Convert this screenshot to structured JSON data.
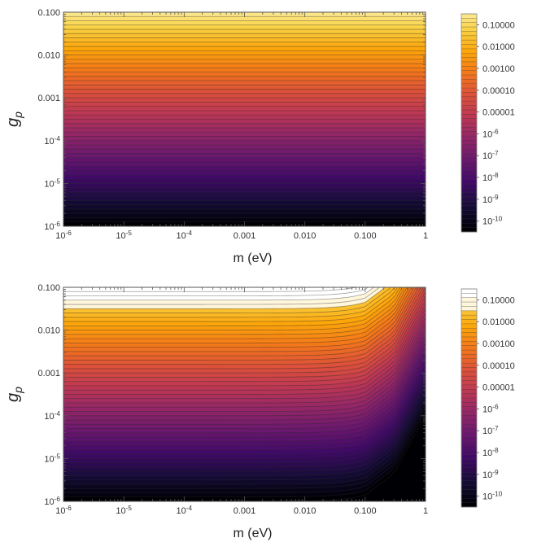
{
  "chart_data": [
    {
      "type": "heatmap",
      "subtype": "contour",
      "title": "",
      "xlabel": "m (eV)",
      "ylabel": "g_p",
      "x_scale": "log",
      "y_scale": "log",
      "xlim": [
        1e-06,
        1
      ],
      "ylim": [
        1e-06,
        0.1
      ],
      "x_ticks": [
        "10^-6",
        "10^-5",
        "10^-4",
        "0.001",
        "0.010",
        "0.100",
        "1"
      ],
      "x_tick_values": [
        1e-06,
        1e-05,
        0.0001,
        0.001,
        0.01,
        0.1,
        1
      ],
      "y_ticks": [
        "10^-6",
        "10^-5",
        "10^-4",
        "0.001",
        "0.010",
        "0.100"
      ],
      "y_tick_values": [
        1e-06,
        1e-05,
        0.0001,
        0.001,
        0.01,
        0.1
      ],
      "colorbar": {
        "labels": [
          "0.10000",
          "0.01000",
          "0.00100",
          "0.00010",
          "0.00001",
          "10^-6",
          "10^-7",
          "10^-8",
          "10^-9",
          "10^-10"
        ],
        "values": [
          0.1,
          0.01,
          0.001,
          0.0001,
          1e-05,
          1e-06,
          1e-07,
          1e-08,
          1e-09,
          1e-10
        ],
        "top_color": "#fde79a"
      },
      "model": "value depends on g_p only; contour levels run horizontal across the full mass range",
      "profile": {
        "g_p": [
          1e-06,
          1e-05,
          0.0001,
          0.001,
          0.01,
          0.1
        ],
        "value": [
          1e-10,
          1e-08,
          1e-06,
          0.0001,
          0.01,
          1
        ]
      }
    },
    {
      "type": "heatmap",
      "subtype": "contour",
      "title": "",
      "xlabel": "m (eV)",
      "ylabel": "g_p",
      "x_scale": "log",
      "y_scale": "log",
      "xlim": [
        1e-06,
        1
      ],
      "ylim": [
        1e-06,
        0.1
      ],
      "x_ticks": [
        "10^-6",
        "10^-5",
        "10^-4",
        "0.001",
        "0.010",
        "0.100",
        "1"
      ],
      "x_tick_values": [
        1e-06,
        1e-05,
        0.0001,
        0.001,
        0.01,
        0.1,
        1
      ],
      "y_ticks": [
        "10^-6",
        "10^-5",
        "10^-4",
        "0.001",
        "0.010",
        "0.100"
      ],
      "y_tick_values": [
        1e-06,
        1e-05,
        0.0001,
        0.001,
        0.01,
        0.1
      ],
      "colorbar": {
        "labels": [
          "0.10000",
          "0.01000",
          "0.00100",
          "0.00010",
          "0.00001",
          "10^-6",
          "10^-7",
          "10^-8",
          "10^-9",
          "10^-10"
        ],
        "values": [
          0.1,
          0.01,
          0.001,
          0.0001,
          1e-05,
          1e-06,
          1e-07,
          1e-08,
          1e-09,
          1e-10
        ],
        "top_color": "#ffffff"
      },
      "model": "value depends on g_p, suppressed as m approaches 1 eV; contours bend downward at high mass",
      "profile": {
        "g_p": [
          1e-06,
          1e-05,
          0.0001,
          0.001,
          0.01,
          0.1
        ],
        "value": [
          1e-10,
          1e-08,
          1e-06,
          0.0001,
          0.01,
          1
        ]
      },
      "mass_suppression": {
        "m": [
          0.1,
          0.3,
          1
        ],
        "log10_drop": [
          0.3,
          1.3,
          4
        ]
      }
    }
  ]
}
